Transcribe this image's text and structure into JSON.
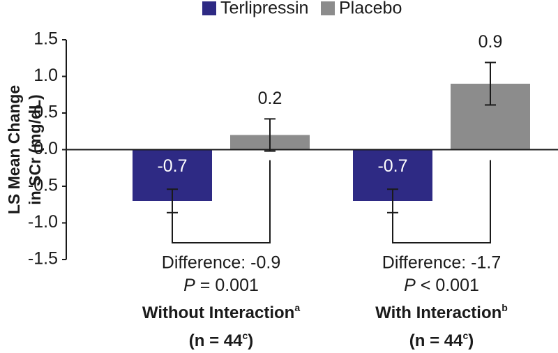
{
  "chart_data": {
    "type": "bar",
    "ylabel": [
      "LS Mean Change",
      "in SCr (mg/dL)"
    ],
    "categories": [
      "Without Interaction",
      "With Interaction"
    ],
    "category_footnotes": [
      "a",
      "b"
    ],
    "n_labels": [
      {
        "before": "(n = 44",
        "sup": "c",
        "after": ")"
      },
      {
        "before": "(n = 44",
        "sup": "c",
        "after": ")"
      }
    ],
    "series": [
      {
        "name": "Terlipressin",
        "color": "#2e2a84",
        "values": [
          -0.7,
          -0.7
        ],
        "errors": [
          0.16,
          0.16
        ]
      },
      {
        "name": "Placebo",
        "color": "#8c8c8c",
        "values": [
          0.2,
          0.9
        ],
        "errors": [
          0.22,
          0.29
        ]
      }
    ],
    "annotations": [
      {
        "difference": "Difference: -0.9",
        "stat": "P",
        "p_text": "= 0.001"
      },
      {
        "difference": "Difference: -1.7",
        "stat": "P",
        "p_text": "< 0.001"
      }
    ],
    "ylim": [
      -1.5,
      1.5
    ],
    "yticks": [
      -1.5,
      {
        "value": -1,
        "label": "-1.0"
      },
      -0.5,
      {
        "value": 0,
        "label": "0.0"
      },
      0.5,
      {
        "value": 1,
        "label": "1.0"
      },
      1.5
    ],
    "legend": "top"
  }
}
